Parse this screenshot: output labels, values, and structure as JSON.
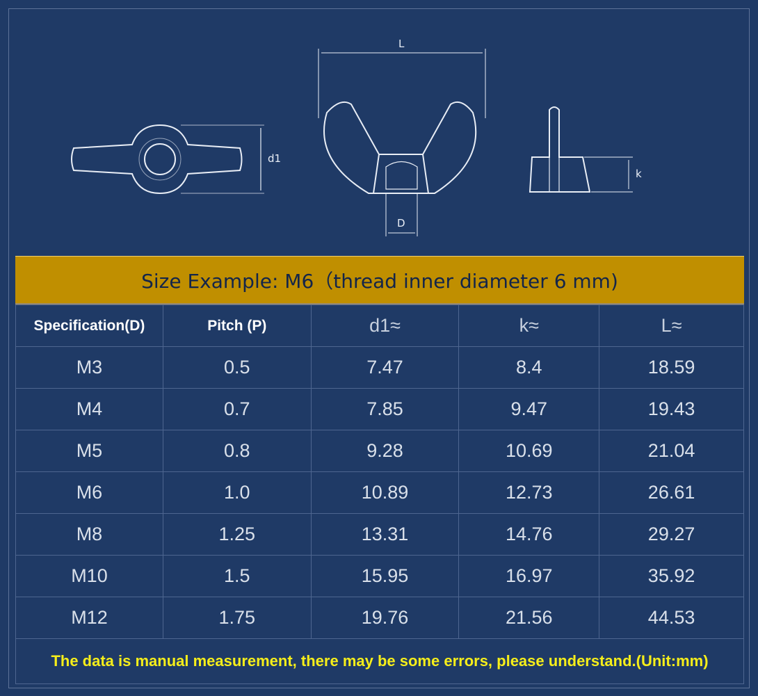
{
  "diagram": {
    "label_L": "L",
    "label_d1": "d1",
    "label_D": "D",
    "label_k": "k"
  },
  "banner": {
    "text": "Size Example: M6（thread inner diameter 6 mm)"
  },
  "table": {
    "headers": [
      "Specification(D)",
      "Pitch (P)",
      "d1≈",
      "k≈",
      "L≈"
    ],
    "rows": [
      [
        "M3",
        "0.5",
        "7.47",
        "8.4",
        "18.59"
      ],
      [
        "M4",
        "0.7",
        "7.85",
        "9.47",
        "19.43"
      ],
      [
        "M5",
        "0.8",
        "9.28",
        "10.69",
        "21.04"
      ],
      [
        "M6",
        "1.0",
        "10.89",
        "12.73",
        "26.61"
      ],
      [
        "M8",
        "1.25",
        "13.31",
        "14.76",
        "29.27"
      ],
      [
        "M10",
        "1.5",
        "15.95",
        "16.97",
        "35.92"
      ],
      [
        "M12",
        "1.75",
        "19.76",
        "21.56",
        "44.53"
      ]
    ]
  },
  "footer": {
    "text": "The data is manual measurement, there may be some errors, please understand.(Unit:mm)"
  },
  "colors": {
    "background": "#1f3a66",
    "banner": "#c08f00",
    "footer_text": "#f6ee1a"
  }
}
